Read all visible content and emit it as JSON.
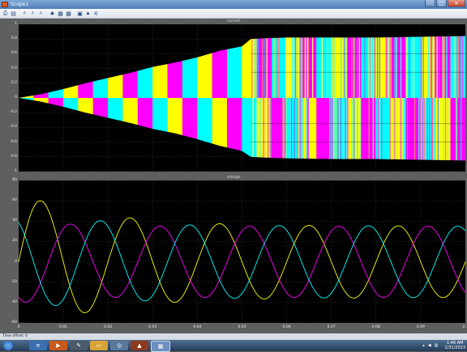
{
  "window": {
    "title": "Scope1",
    "buttons": {
      "minimize": "–",
      "maximize": "□",
      "close": "✕"
    }
  },
  "toolbar": {
    "icons": [
      "print-icon",
      "parameters-icon",
      "zoom-in-icon",
      "zoom-x-icon",
      "zoom-y-icon",
      "autoscale-icon",
      "save-axes-icon",
      "restore-axes-icon",
      "floating-scope-icon",
      "lock-icon",
      "signal-selector-icon"
    ]
  },
  "colors": {
    "plot_bg": "#000000",
    "grid": "#4a4a4a",
    "yellow": "#ffff00",
    "magenta": "#ff00ff",
    "cyan": "#00ffff"
  },
  "status": {
    "text": "Time offset:  0"
  },
  "taskbar": {
    "apps": [
      "ie-icon",
      "media-player-icon",
      "tool-icon",
      "folder-icon",
      "network-icon",
      "matlab-icon",
      "simulink-icon"
    ],
    "tray": {
      "time": "1:46 AM",
      "date": "1/31/2013"
    }
  },
  "chart_data": [
    {
      "type": "area",
      "title": "current",
      "xlim": [
        0,
        0.1
      ],
      "ylim": [
        -1,
        1
      ],
      "yticks": [
        -1,
        -0.8,
        -0.6,
        -0.4,
        -0.2,
        0,
        0.2,
        0.4,
        0.6,
        0.8,
        1
      ],
      "ytick_labels": [
        "-1",
        "-0.8",
        "-0.6",
        "-0.4",
        "-0.2",
        "0",
        "0.2",
        "0.4",
        "0.6",
        "0.8",
        "1"
      ],
      "grid": true,
      "envelope": {
        "x": [
          0,
          0.005,
          0.01,
          0.015,
          0.02,
          0.025,
          0.03,
          0.035,
          0.04,
          0.045,
          0.05,
          0.052,
          0.055,
          0.06,
          0.07,
          0.08,
          0.09,
          0.1
        ],
        "upper": [
          0,
          0.05,
          0.12,
          0.2,
          0.27,
          0.34,
          0.42,
          0.48,
          0.55,
          0.64,
          0.7,
          0.8,
          0.81,
          0.82,
          0.82,
          0.82,
          0.83,
          0.84
        ],
        "lower": [
          0,
          -0.05,
          -0.12,
          -0.2,
          -0.27,
          -0.34,
          -0.42,
          -0.48,
          -0.56,
          -0.65,
          -0.72,
          -0.8,
          -0.81,
          -0.82,
          -0.83,
          -0.83,
          -0.84,
          -0.85
        ]
      },
      "series": [
        {
          "color": "#ffff00"
        },
        {
          "color": "#ff00ff"
        },
        {
          "color": "#00ffff"
        }
      ]
    },
    {
      "type": "line",
      "title": "voltage",
      "xlim": [
        0,
        0.1
      ],
      "ylim": [
        -60,
        80
      ],
      "yticks": [
        -60,
        -40,
        -20,
        0,
        20,
        40,
        60,
        80
      ],
      "ytick_labels": [
        "-60",
        "-40",
        "-20",
        "0",
        "20",
        "40",
        "60",
        "80"
      ],
      "xticks": [
        0,
        0.01,
        0.02,
        0.03,
        0.04,
        0.05,
        0.06,
        0.07,
        0.08,
        0.09,
        0.1
      ],
      "xtick_labels": [
        "0",
        "0.01",
        "0.02",
        "0.03",
        "0.04",
        "0.05",
        "0.06",
        "0.07",
        "0.08",
        "0.09",
        "0.1"
      ],
      "grid": true,
      "frequency_hz": 50,
      "series": [
        {
          "color": "#ffff00",
          "phase_deg": 0,
          "amplitude": [
            [
              0,
              65
            ],
            [
              0.02,
              45
            ],
            [
              0.04,
              38
            ],
            [
              0.06,
              36
            ],
            [
              0.1,
              35
            ]
          ],
          "offset": [
            [
              0,
              0
            ],
            [
              0.1,
              0
            ]
          ]
        },
        {
          "color": "#ff00ff",
          "phase_deg": -120,
          "amplitude": [
            [
              0,
              40
            ],
            [
              0.02,
              35
            ],
            [
              0.04,
              35
            ],
            [
              0.1,
              35
            ]
          ]
        },
        {
          "color": "#00ffff",
          "phase_deg": 120,
          "amplitude": [
            [
              0,
              45
            ],
            [
              0.02,
              40
            ],
            [
              0.04,
              36
            ],
            [
              0.1,
              35
            ]
          ]
        }
      ]
    }
  ]
}
